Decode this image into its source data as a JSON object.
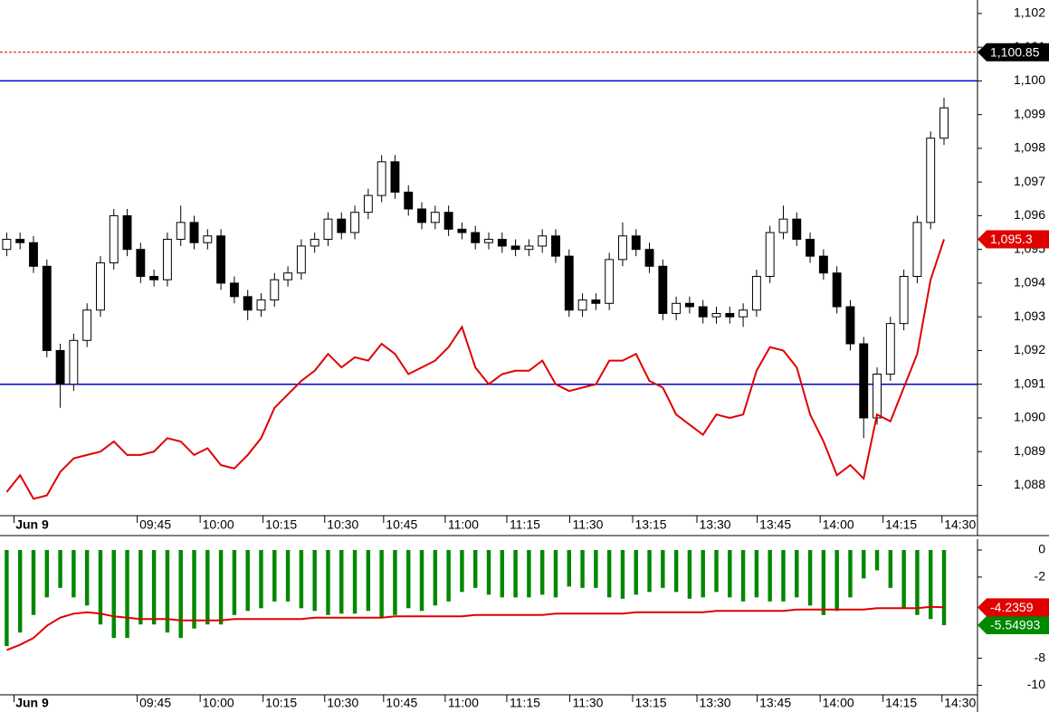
{
  "chart_data": [
    {
      "type": "candlestick",
      "xlim": [
        -0.5,
        72.5
      ],
      "xticks": [
        {
          "value": 1.9,
          "label": "Jun 9"
        },
        {
          "value": 11.1,
          "label": "09:45"
        },
        {
          "value": 15.8,
          "label": "10:00"
        },
        {
          "value": 20.5,
          "label": "10:15"
        },
        {
          "value": 25.1,
          "label": "10:30"
        },
        {
          "value": 29.5,
          "label": "10:45"
        },
        {
          "value": 34.1,
          "label": "11:00"
        },
        {
          "value": 38.7,
          "label": "11:15"
        },
        {
          "value": 43.4,
          "label": "11:30"
        },
        {
          "value": 48.1,
          "label": "13:15"
        },
        {
          "value": 52.9,
          "label": "13:30"
        },
        {
          "value": 57.4,
          "label": "13:45"
        },
        {
          "value": 62.1,
          "label": "14:00"
        },
        {
          "value": 66.8,
          "label": "14:15"
        },
        {
          "value": 71.2,
          "label": "14:30"
        }
      ],
      "ylim": [
        1087.1,
        1102.4
      ],
      "yticks": [
        {
          "value": 1088,
          "label": "1,088"
        },
        {
          "value": 1089,
          "label": "1,089"
        },
        {
          "value": 1090,
          "label": "1,090"
        },
        {
          "value": 1091,
          "label": "1,091"
        },
        {
          "value": 1092,
          "label": "1,092"
        },
        {
          "value": 1093,
          "label": "1,093"
        },
        {
          "value": 1094,
          "label": "1,094"
        },
        {
          "value": 1095,
          "label": "1,095"
        },
        {
          "value": 1096,
          "label": "1,096"
        },
        {
          "value": 1097,
          "label": "1,097"
        },
        {
          "value": 1098,
          "label": "1,098"
        },
        {
          "value": 1099,
          "label": "1,099"
        },
        {
          "value": 1100,
          "label": "1,100"
        },
        {
          "value": 1101,
          "label": "1,101"
        },
        {
          "value": 1102,
          "label": "1,102"
        }
      ],
      "up_color": "#ffffff",
      "down_color": "#000000",
      "open": [
        1095.0,
        1095.3,
        1095.2,
        1094.5,
        1092.0,
        1091.0,
        1092.3,
        1093.2,
        1094.6,
        1096.0,
        1095.0,
        1094.2,
        1094.1,
        1095.3,
        1095.8,
        1095.2,
        1095.4,
        1094.0,
        1093.6,
        1093.2,
        1093.5,
        1094.1,
        1094.3,
        1095.1,
        1095.3,
        1095.9,
        1095.5,
        1096.1,
        1096.6,
        1097.6,
        1096.7,
        1096.2,
        1095.8,
        1096.1,
        1095.6,
        1095.5,
        1095.2,
        1095.3,
        1095.1,
        1095.0,
        1095.1,
        1095.4,
        1094.8,
        1093.2,
        1093.5,
        1093.4,
        1094.7,
        1095.4,
        1095.0,
        1094.5,
        1093.1,
        1093.4,
        1093.3,
        1093.0,
        1093.1,
        1093.0,
        1093.2,
        1094.2,
        1095.5,
        1095.9,
        1095.3,
        1094.8,
        1094.3,
        1093.3,
        1092.2,
        1090.0,
        1091.3,
        1092.8,
        1094.2,
        1095.8,
        1098.3
      ],
      "high": [
        1095.5,
        1095.5,
        1095.4,
        1094.7,
        1092.2,
        1092.5,
        1093.4,
        1094.8,
        1096.2,
        1096.2,
        1095.2,
        1094.4,
        1095.5,
        1096.3,
        1096.0,
        1095.6,
        1095.6,
        1094.2,
        1093.8,
        1093.7,
        1094.3,
        1094.5,
        1095.3,
        1095.5,
        1096.1,
        1096.1,
        1096.3,
        1096.8,
        1097.8,
        1097.8,
        1096.9,
        1096.4,
        1096.3,
        1096.3,
        1095.8,
        1095.7,
        1095.5,
        1095.5,
        1095.3,
        1095.3,
        1095.6,
        1095.6,
        1095.0,
        1093.7,
        1093.7,
        1094.9,
        1095.8,
        1095.6,
        1095.2,
        1094.7,
        1093.6,
        1093.6,
        1093.5,
        1093.3,
        1093.3,
        1093.4,
        1094.4,
        1095.7,
        1096.3,
        1096.1,
        1095.5,
        1095.0,
        1094.5,
        1093.5,
        1092.4,
        1091.5,
        1093.0,
        1094.4,
        1096.0,
        1098.5,
        1099.5
      ],
      "low": [
        1094.8,
        1095.0,
        1094.3,
        1091.8,
        1090.3,
        1090.8,
        1092.1,
        1093.0,
        1094.4,
        1094.8,
        1094.0,
        1093.9,
        1093.9,
        1095.1,
        1095.0,
        1095.0,
        1093.8,
        1093.4,
        1092.9,
        1093.0,
        1093.3,
        1093.9,
        1094.1,
        1094.9,
        1095.1,
        1095.3,
        1095.3,
        1095.9,
        1096.4,
        1096.5,
        1096.0,
        1095.6,
        1095.6,
        1095.4,
        1095.3,
        1095.0,
        1095.0,
        1094.9,
        1094.8,
        1094.8,
        1094.9,
        1094.6,
        1093.0,
        1093.0,
        1093.2,
        1093.2,
        1094.5,
        1094.8,
        1094.3,
        1092.9,
        1092.9,
        1093.1,
        1092.8,
        1092.8,
        1092.8,
        1092.7,
        1093.0,
        1094.0,
        1095.3,
        1095.1,
        1094.6,
        1094.1,
        1093.1,
        1092.0,
        1089.4,
        1089.8,
        1091.1,
        1092.6,
        1094.0,
        1095.6,
        1098.1
      ],
      "close": [
        1095.3,
        1095.2,
        1094.5,
        1092.0,
        1091.0,
        1092.3,
        1093.2,
        1094.6,
        1096.0,
        1095.0,
        1094.2,
        1094.1,
        1095.3,
        1095.8,
        1095.2,
        1095.4,
        1094.0,
        1093.6,
        1093.2,
        1093.5,
        1094.1,
        1094.3,
        1095.1,
        1095.3,
        1095.9,
        1095.5,
        1096.1,
        1096.6,
        1097.6,
        1096.7,
        1096.2,
        1095.8,
        1096.1,
        1095.6,
        1095.5,
        1095.2,
        1095.3,
        1095.1,
        1095.0,
        1095.1,
        1095.4,
        1094.8,
        1093.2,
        1093.5,
        1093.4,
        1094.7,
        1095.4,
        1095.0,
        1094.5,
        1093.1,
        1093.4,
        1093.3,
        1093.0,
        1093.1,
        1093.0,
        1093.2,
        1094.2,
        1095.5,
        1095.9,
        1095.3,
        1094.8,
        1094.3,
        1093.3,
        1092.2,
        1090.0,
        1091.3,
        1092.8,
        1094.2,
        1095.8,
        1098.3,
        1099.2
      ],
      "lines": [
        {
          "color": "#e00000",
          "end_label": "1,095.3",
          "values": [
            1087.8,
            1088.3,
            1087.6,
            1087.7,
            1088.4,
            1088.8,
            1088.9,
            1089.0,
            1089.3,
            1088.9,
            1088.9,
            1089.0,
            1089.4,
            1089.3,
            1088.9,
            1089.1,
            1088.6,
            1088.5,
            1088.9,
            1089.4,
            1090.3,
            1090.7,
            1091.1,
            1091.4,
            1091.9,
            1091.5,
            1091.8,
            1091.7,
            1092.2,
            1091.9,
            1091.3,
            1091.5,
            1091.7,
            1092.1,
            1092.7,
            1091.5,
            1091.0,
            1091.3,
            1091.4,
            1091.4,
            1091.7,
            1091.0,
            1090.8,
            1090.9,
            1091.0,
            1091.7,
            1091.7,
            1091.9,
            1091.1,
            1090.9,
            1090.1,
            1089.8,
            1089.5,
            1090.1,
            1090.0,
            1090.1,
            1091.4,
            1092.1,
            1092.0,
            1091.5,
            1090.1,
            1089.3,
            1088.3,
            1088.6,
            1088.2,
            1090.1,
            1089.9,
            1090.9,
            1091.9,
            1094.1,
            1095.3
          ]
        }
      ],
      "levels": [
        {
          "value": 1100,
          "color": "#0000cc",
          "style": "solid"
        },
        {
          "value": 1091,
          "color": "#0000cc",
          "style": "solid"
        },
        {
          "value": 1100.85,
          "label": "1,100.85",
          "color": "#cc0000",
          "style": "dotted"
        }
      ]
    },
    {
      "type": "bar",
      "xlim": [
        -0.5,
        72.5
      ],
      "xticks": [
        {
          "value": 1.9,
          "label": "Jun 9"
        },
        {
          "value": 11.1,
          "label": "09:45"
        },
        {
          "value": 15.8,
          "label": "10:00"
        },
        {
          "value": 20.5,
          "label": "10:15"
        },
        {
          "value": 25.1,
          "label": "10:30"
        },
        {
          "value": 29.5,
          "label": "10:45"
        },
        {
          "value": 34.1,
          "label": "11:00"
        },
        {
          "value": 38.7,
          "label": "11:15"
        },
        {
          "value": 43.4,
          "label": "11:30"
        },
        {
          "value": 48.1,
          "label": "13:15"
        },
        {
          "value": 52.9,
          "label": "13:30"
        },
        {
          "value": 57.4,
          "label": "13:45"
        },
        {
          "value": 62.1,
          "label": "14:00"
        },
        {
          "value": 66.8,
          "label": "14:15"
        },
        {
          "value": 71.2,
          "label": "14:30"
        }
      ],
      "ylim": [
        -10.7,
        0.8
      ],
      "yticks": [
        0,
        -2,
        -8,
        -10
      ],
      "series": [
        {
          "type": "bar",
          "color": "#008800",
          "values": [
            -7.1,
            -6.1,
            -4.8,
            -3.5,
            -2.8,
            -3.5,
            -4.1,
            -5.5,
            -6.5,
            -6.5,
            -5.5,
            -5.5,
            -6.1,
            -6.5,
            -5.8,
            -5.5,
            -5.5,
            -4.8,
            -4.5,
            -4.3,
            -3.8,
            -3.8,
            -4.3,
            -4.5,
            -4.8,
            -4.7,
            -4.7,
            -4.5,
            -5.0,
            -4.8,
            -4.3,
            -4.5,
            -4.1,
            -3.8,
            -3.1,
            -2.8,
            -3.3,
            -3.5,
            -3.5,
            -3.5,
            -3.3,
            -3.5,
            -2.7,
            -2.8,
            -2.8,
            -3.5,
            -3.6,
            -3.3,
            -3.1,
            -2.8,
            -3.1,
            -3.6,
            -3.5,
            -3.1,
            -3.5,
            -3.8,
            -3.5,
            -3.8,
            -3.8,
            -3.5,
            -4.1,
            -4.8,
            -4.5,
            -3.5,
            -2.1,
            -1.5,
            -2.8,
            -4.3,
            -4.8,
            -5.1,
            -5.54993
          ]
        },
        {
          "type": "line",
          "color": "#e00000",
          "values": [
            -7.4,
            -7.0,
            -6.5,
            -5.6,
            -5.0,
            -4.7,
            -4.6,
            -4.7,
            -4.9,
            -5.0,
            -5.1,
            -5.1,
            -5.1,
            -5.2,
            -5.2,
            -5.2,
            -5.2,
            -5.1,
            -5.1,
            -5.1,
            -5.1,
            -5.1,
            -5.1,
            -5.0,
            -5.0,
            -5.0,
            -5.0,
            -5.0,
            -5.0,
            -4.9,
            -4.9,
            -4.9,
            -4.9,
            -4.9,
            -4.9,
            -4.8,
            -4.8,
            -4.8,
            -4.8,
            -4.8,
            -4.8,
            -4.7,
            -4.7,
            -4.7,
            -4.7,
            -4.7,
            -4.7,
            -4.6,
            -4.6,
            -4.6,
            -4.6,
            -4.6,
            -4.6,
            -4.5,
            -4.5,
            -4.5,
            -4.5,
            -4.5,
            -4.5,
            -4.4,
            -4.4,
            -4.4,
            -4.4,
            -4.4,
            -4.4,
            -4.3,
            -4.3,
            -4.3,
            -4.3,
            -4.2,
            -4.2359
          ]
        }
      ]
    }
  ]
}
